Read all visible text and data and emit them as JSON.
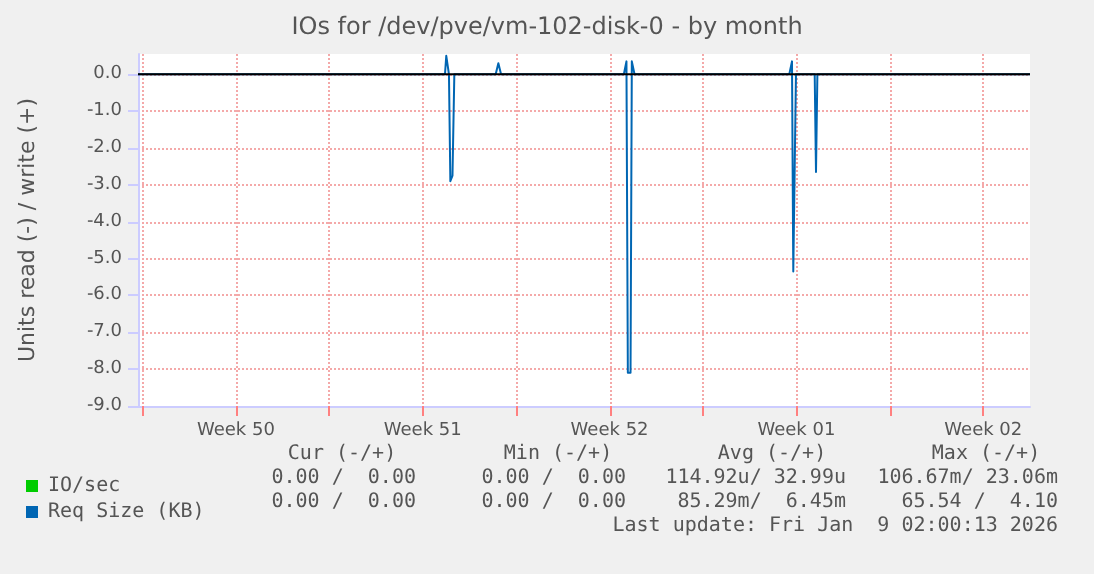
{
  "chart_data": {
    "type": "line",
    "title": "IOs for /dev/pve/vm-102-disk-0 - by month",
    "ylabel": "Units read (-) / write (+)",
    "xlim": [
      "2025-12-07T20:00",
      "2026-01-10T06:00"
    ],
    "ylim": [
      -9,
      0.55
    ],
    "xticks": [
      {
        "value": "2025-12-08T00:00",
        "label": null
      },
      {
        "value": "2025-12-11T12:00",
        "label": "Week 50"
      },
      {
        "value": "2025-12-15T00:00",
        "label": null
      },
      {
        "value": "2025-12-18T12:00",
        "label": "Week 51"
      },
      {
        "value": "2025-12-22T00:00",
        "label": null
      },
      {
        "value": "2025-12-25T12:00",
        "label": "Week 52"
      },
      {
        "value": "2025-12-29T00:00",
        "label": null
      },
      {
        "value": "2026-01-01T12:00",
        "label": "Week 01"
      },
      {
        "value": "2026-01-05T00:00",
        "label": null
      },
      {
        "value": "2026-01-08T12:00",
        "label": "Week 02"
      }
    ],
    "yticks": [
      {
        "value": -9,
        "label": "-9.0"
      },
      {
        "value": -8,
        "label": "-8.0"
      },
      {
        "value": -7,
        "label": "-7.0"
      },
      {
        "value": -6,
        "label": "-6.0"
      },
      {
        "value": -5,
        "label": "-5.0"
      },
      {
        "value": -4,
        "label": "-4.0"
      },
      {
        "value": -3,
        "label": "-3.0"
      },
      {
        "value": -2,
        "label": "-2.0"
      },
      {
        "value": -1,
        "label": "-1.0"
      },
      {
        "value": 0,
        "label": "0.0"
      }
    ],
    "grid": true,
    "legend": "bottom left",
    "marker": "none",
    "line_style": "solid",
    "ref_lines": [
      {
        "axis": "y",
        "value": 0,
        "color": "#000000"
      }
    ],
    "series": [
      {
        "name": "IO/sec",
        "color": "#00cc00"
      },
      {
        "name": "Req Size (KB)",
        "color": "#0066b3",
        "x": [
          "2025-12-07T20:00",
          "2025-12-19T08:00",
          "2025-12-19T09:10",
          "2025-12-19T11:35",
          "2025-12-19T12:50",
          "2025-12-19T14:45",
          "2025-12-19T16:25",
          "2025-12-21T05:35",
          "2025-12-21T08:00",
          "2025-12-21T10:25",
          "2025-12-26T00:50",
          "2025-12-26T03:10",
          "2025-12-26T04:25",
          "2025-12-26T06:50",
          "2025-12-26T08:00",
          "2025-12-26T10:25",
          "2026-01-01T05:35",
          "2026-01-01T08:00",
          "2026-01-01T09:10",
          "2026-01-01T11:35",
          "2026-01-02T04:25",
          "2026-01-02T05:35",
          "2026-01-02T06:50",
          "2026-01-10T06:00"
        ],
        "values": [
          0,
          0,
          0.5,
          0,
          -2.9,
          -2.75,
          0,
          0,
          0.3,
          0,
          0,
          0.35,
          -8.1,
          -8.1,
          0.35,
          0,
          0,
          0.35,
          -5.35,
          0,
          0,
          -2.65,
          0,
          0
        ]
      }
    ],
    "annotations": [
      "Cur (-/+)",
      "Min (-/+)",
      "Avg (-/+)",
      "Max (-/+)",
      "0.00 /  0.00",
      "0.00 /  0.00",
      "114.92u/ 32.99u",
      "106.67m/ 23.06m",
      "0.00 /  0.00",
      "0.00 /  0.00",
      "85.29m/  6.45m",
      "65.54 /  4.10",
      "Last update: Fri Jan  9 02:00:13 2026"
    ]
  }
}
